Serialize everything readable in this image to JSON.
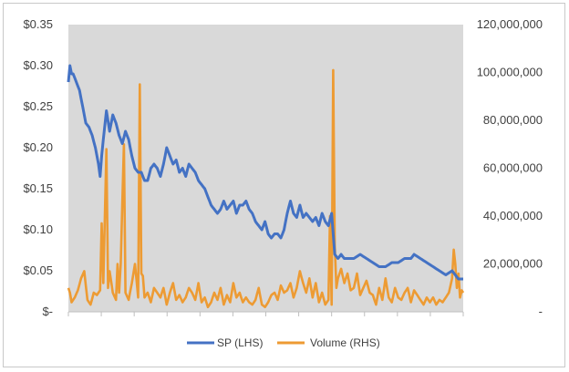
{
  "chart_data": {
    "type": "line",
    "title": "",
    "xlabel": "",
    "ylabel_left": "",
    "ylabel_right": "",
    "grid": false,
    "legend_position": "bottom",
    "plot_background": "#d9d9d9",
    "left_axis": {
      "ylim": [
        0,
        0.35
      ],
      "tick_values": [
        0,
        0.05,
        0.1,
        0.15,
        0.2,
        0.25,
        0.3,
        0.35
      ],
      "tick_labels": [
        "$-",
        "$0.05",
        "$0.10",
        "$0.15",
        "$0.20",
        "$0.25",
        "$0.30",
        "$0.35"
      ]
    },
    "right_axis": {
      "ylim": [
        0,
        120000000
      ],
      "tick_values": [
        0,
        20000000,
        40000000,
        60000000,
        80000000,
        100000000,
        120000000
      ],
      "tick_labels": [
        "-",
        "20,000,000",
        "40,000,000",
        "60,000,000",
        "80,000,000",
        "100,000,000",
        "120,000,000"
      ]
    },
    "x_count": 250,
    "series": [
      {
        "name": "SP (LHS)",
        "axis": "left",
        "color": "#4472c4",
        "anchors": [
          [
            0,
            0.28
          ],
          [
            1,
            0.3
          ],
          [
            2,
            0.29
          ],
          [
            3,
            0.29
          ],
          [
            5,
            0.28
          ],
          [
            7,
            0.27
          ],
          [
            9,
            0.25
          ],
          [
            11,
            0.23
          ],
          [
            13,
            0.225
          ],
          [
            15,
            0.215
          ],
          [
            17,
            0.2
          ],
          [
            19,
            0.18
          ],
          [
            20,
            0.165
          ],
          [
            21,
            0.19
          ],
          [
            22,
            0.21
          ],
          [
            24,
            0.245
          ],
          [
            26,
            0.22
          ],
          [
            28,
            0.24
          ],
          [
            30,
            0.23
          ],
          [
            32,
            0.215
          ],
          [
            34,
            0.205
          ],
          [
            36,
            0.22
          ],
          [
            38,
            0.21
          ],
          [
            40,
            0.19
          ],
          [
            42,
            0.175
          ],
          [
            44,
            0.17
          ],
          [
            46,
            0.17
          ],
          [
            48,
            0.16
          ],
          [
            50,
            0.16
          ],
          [
            52,
            0.175
          ],
          [
            54,
            0.18
          ],
          [
            56,
            0.175
          ],
          [
            58,
            0.165
          ],
          [
            60,
            0.18
          ],
          [
            62,
            0.2
          ],
          [
            64,
            0.19
          ],
          [
            66,
            0.18
          ],
          [
            68,
            0.185
          ],
          [
            70,
            0.17
          ],
          [
            72,
            0.175
          ],
          [
            74,
            0.165
          ],
          [
            76,
            0.18
          ],
          [
            78,
            0.175
          ],
          [
            80,
            0.17
          ],
          [
            82,
            0.16
          ],
          [
            84,
            0.155
          ],
          [
            86,
            0.15
          ],
          [
            88,
            0.14
          ],
          [
            90,
            0.13
          ],
          [
            92,
            0.125
          ],
          [
            94,
            0.12
          ],
          [
            96,
            0.125
          ],
          [
            98,
            0.135
          ],
          [
            100,
            0.125
          ],
          [
            102,
            0.13
          ],
          [
            104,
            0.135
          ],
          [
            106,
            0.12
          ],
          [
            108,
            0.13
          ],
          [
            110,
            0.13
          ],
          [
            112,
            0.135
          ],
          [
            114,
            0.125
          ],
          [
            116,
            0.12
          ],
          [
            118,
            0.11
          ],
          [
            120,
            0.105
          ],
          [
            122,
            0.1
          ],
          [
            124,
            0.11
          ],
          [
            126,
            0.095
          ],
          [
            128,
            0.09
          ],
          [
            130,
            0.095
          ],
          [
            132,
            0.095
          ],
          [
            134,
            0.09
          ],
          [
            136,
            0.1
          ],
          [
            138,
            0.12
          ],
          [
            140,
            0.135
          ],
          [
            142,
            0.12
          ],
          [
            144,
            0.115
          ],
          [
            146,
            0.13
          ],
          [
            148,
            0.115
          ],
          [
            150,
            0.12
          ],
          [
            152,
            0.115
          ],
          [
            154,
            0.11
          ],
          [
            156,
            0.115
          ],
          [
            158,
            0.105
          ],
          [
            160,
            0.12
          ],
          [
            162,
            0.11
          ],
          [
            164,
            0.105
          ],
          [
            166,
            0.12
          ],
          [
            168,
            0.07
          ],
          [
            170,
            0.065
          ],
          [
            172,
            0.07
          ],
          [
            174,
            0.065
          ],
          [
            176,
            0.065
          ],
          [
            180,
            0.065
          ],
          [
            184,
            0.07
          ],
          [
            188,
            0.065
          ],
          [
            192,
            0.06
          ],
          [
            196,
            0.055
          ],
          [
            200,
            0.055
          ],
          [
            204,
            0.06
          ],
          [
            208,
            0.06
          ],
          [
            212,
            0.065
          ],
          [
            216,
            0.065
          ],
          [
            218,
            0.07
          ],
          [
            222,
            0.065
          ],
          [
            226,
            0.06
          ],
          [
            230,
            0.055
          ],
          [
            234,
            0.05
          ],
          [
            238,
            0.045
          ],
          [
            242,
            0.05
          ],
          [
            244,
            0.045
          ],
          [
            246,
            0.04
          ],
          [
            249,
            0.04
          ]
        ]
      },
      {
        "name": "Volume (RHS)",
        "axis": "right",
        "color": "#ed9b33",
        "anchors": [
          [
            0,
            10000000
          ],
          [
            1,
            8000000
          ],
          [
            2,
            4000000
          ],
          [
            4,
            6000000
          ],
          [
            6,
            9000000
          ],
          [
            8,
            14000000
          ],
          [
            10,
            17000000
          ],
          [
            12,
            5000000
          ],
          [
            14,
            3000000
          ],
          [
            16,
            8000000
          ],
          [
            18,
            7000000
          ],
          [
            20,
            9000000
          ],
          [
            21,
            37000000
          ],
          [
            22,
            12000000
          ],
          [
            24,
            68000000
          ],
          [
            25,
            10000000
          ],
          [
            26,
            17000000
          ],
          [
            28,
            8000000
          ],
          [
            30,
            5000000
          ],
          [
            31,
            20000000
          ],
          [
            32,
            8000000
          ],
          [
            33,
            20000000
          ],
          [
            35,
            70000000
          ],
          [
            36,
            8000000
          ],
          [
            38,
            5000000
          ],
          [
            40,
            12000000
          ],
          [
            42,
            20000000
          ],
          [
            44,
            6000000
          ],
          [
            45,
            95000000
          ],
          [
            46,
            16000000
          ],
          [
            47,
            15000000
          ],
          [
            48,
            6000000
          ],
          [
            50,
            8000000
          ],
          [
            52,
            4000000
          ],
          [
            54,
            10000000
          ],
          [
            56,
            8000000
          ],
          [
            58,
            6000000
          ],
          [
            60,
            10000000
          ],
          [
            62,
            3000000
          ],
          [
            64,
            8000000
          ],
          [
            66,
            12000000
          ],
          [
            68,
            5000000
          ],
          [
            70,
            7000000
          ],
          [
            72,
            4000000
          ],
          [
            74,
            6000000
          ],
          [
            76,
            10000000
          ],
          [
            78,
            8000000
          ],
          [
            80,
            5000000
          ],
          [
            82,
            12000000
          ],
          [
            84,
            4000000
          ],
          [
            86,
            6000000
          ],
          [
            88,
            2000000
          ],
          [
            90,
            4000000
          ],
          [
            92,
            8000000
          ],
          [
            94,
            5000000
          ],
          [
            96,
            10000000
          ],
          [
            98,
            3000000
          ],
          [
            100,
            7000000
          ],
          [
            102,
            4000000
          ],
          [
            104,
            12000000
          ],
          [
            106,
            6000000
          ],
          [
            108,
            8000000
          ],
          [
            110,
            4000000
          ],
          [
            112,
            6000000
          ],
          [
            114,
            4000000
          ],
          [
            116,
            3000000
          ],
          [
            118,
            5000000
          ],
          [
            120,
            10000000
          ],
          [
            122,
            3000000
          ],
          [
            124,
            2000000
          ],
          [
            126,
            4000000
          ],
          [
            128,
            7000000
          ],
          [
            130,
            8000000
          ],
          [
            132,
            5000000
          ],
          [
            134,
            11000000
          ],
          [
            136,
            8000000
          ],
          [
            138,
            9000000
          ],
          [
            140,
            12000000
          ],
          [
            142,
            6000000
          ],
          [
            144,
            10000000
          ],
          [
            146,
            17000000
          ],
          [
            148,
            12000000
          ],
          [
            150,
            8000000
          ],
          [
            152,
            14000000
          ],
          [
            154,
            6000000
          ],
          [
            156,
            12000000
          ],
          [
            158,
            4000000
          ],
          [
            160,
            8000000
          ],
          [
            162,
            3000000
          ],
          [
            164,
            5000000
          ],
          [
            165,
            40000000
          ],
          [
            166,
            3000000
          ],
          [
            167,
            101000000
          ],
          [
            168,
            28000000
          ],
          [
            169,
            10000000
          ],
          [
            170,
            14000000
          ],
          [
            172,
            18000000
          ],
          [
            174,
            12000000
          ],
          [
            176,
            16000000
          ],
          [
            178,
            9000000
          ],
          [
            180,
            10000000
          ],
          [
            182,
            16000000
          ],
          [
            184,
            7000000
          ],
          [
            186,
            10000000
          ],
          [
            188,
            13000000
          ],
          [
            190,
            8000000
          ],
          [
            192,
            7000000
          ],
          [
            194,
            3000000
          ],
          [
            196,
            10000000
          ],
          [
            198,
            5000000
          ],
          [
            200,
            14000000
          ],
          [
            202,
            6000000
          ],
          [
            204,
            4000000
          ],
          [
            206,
            10000000
          ],
          [
            208,
            6000000
          ],
          [
            210,
            5000000
          ],
          [
            212,
            8000000
          ],
          [
            214,
            10000000
          ],
          [
            216,
            4000000
          ],
          [
            218,
            9000000
          ],
          [
            220,
            7000000
          ],
          [
            222,
            5000000
          ],
          [
            224,
            3000000
          ],
          [
            226,
            6000000
          ],
          [
            228,
            4000000
          ],
          [
            230,
            6000000
          ],
          [
            232,
            3000000
          ],
          [
            234,
            5000000
          ],
          [
            236,
            4000000
          ],
          [
            238,
            6000000
          ],
          [
            240,
            8000000
          ],
          [
            242,
            14000000
          ],
          [
            243,
            26000000
          ],
          [
            244,
            20000000
          ],
          [
            245,
            10000000
          ],
          [
            246,
            16000000
          ],
          [
            247,
            6000000
          ],
          [
            248,
            9000000
          ],
          [
            249,
            8000000
          ]
        ]
      }
    ]
  }
}
